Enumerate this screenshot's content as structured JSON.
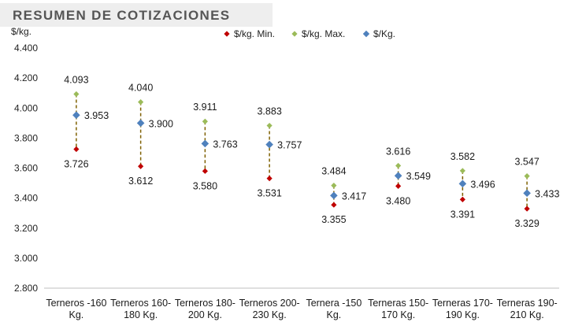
{
  "title": "RESUMEN DE COTIZACIONES",
  "colors": {
    "min": "#c00000",
    "max": "#9bbb59",
    "avg": "#4f81bd",
    "connector": "#7f6000",
    "axis": "#bfbfbf"
  },
  "chart_data": {
    "type": "scatter",
    "title": "RESUMEN DE COTIZACIONES",
    "ylabel": "$/kg.",
    "xlabel": "",
    "ylim": [
      2.8,
      4.4
    ],
    "yticks": [
      "2.800",
      "3.000",
      "3.200",
      "3.400",
      "3.600",
      "3.800",
      "4.000",
      "4.200",
      "4.400"
    ],
    "grid": false,
    "legend_position": "top",
    "categories": [
      [
        "Terneros -160",
        "Kg."
      ],
      [
        "Terneros 160-",
        "180 Kg."
      ],
      [
        "Terneros 180-",
        "200 Kg."
      ],
      [
        "Terneros 200-",
        "230 Kg."
      ],
      [
        "Ternera -150",
        "Kg."
      ],
      [
        "Terneras 150-",
        "170 Kg."
      ],
      [
        "Terneras 170-",
        "190 Kg."
      ],
      [
        "Terneras 190-",
        "210 Kg."
      ]
    ],
    "series": [
      {
        "name": "$/kg. Min.",
        "key": "min",
        "values": [
          3.726,
          3.612,
          3.58,
          3.531,
          3.355,
          3.48,
          3.391,
          3.329
        ],
        "labels": [
          "3.726",
          "3.612",
          "3.580",
          "3.531",
          "3.355",
          "3.480",
          "3.391",
          "3.329"
        ]
      },
      {
        "name": "$/kg. Max.",
        "key": "max",
        "values": [
          4.093,
          4.04,
          3.911,
          3.883,
          3.484,
          3.616,
          3.582,
          3.547
        ],
        "labels": [
          "4.093",
          "4.040",
          "3.911",
          "3.883",
          "3.484",
          "3.616",
          "3.582",
          "3.547"
        ]
      },
      {
        "name": "$/Kg.",
        "key": "avg",
        "values": [
          3.953,
          3.9,
          3.763,
          3.757,
          3.417,
          3.549,
          3.496,
          3.433
        ],
        "labels": [
          "3.953",
          "3.900",
          "3.763",
          "3.757",
          "3.417",
          "3.549",
          "3.496",
          "3.433"
        ]
      }
    ]
  }
}
